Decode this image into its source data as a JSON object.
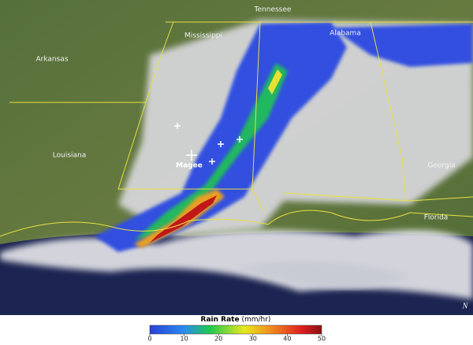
{
  "map": {
    "labels": [
      "Tennessee",
      "Mississippi",
      "Alabama",
      "Arkansas",
      "Louisiana",
      "Georgia",
      "Florida"
    ],
    "city": "Magee",
    "north": "N",
    "legend": {
      "title": "Rain Rate",
      "unit": "(mm/hr)",
      "range": [
        0,
        50
      ],
      "ticks": [
        0,
        10,
        20,
        30,
        40,
        50
      ]
    }
  }
}
